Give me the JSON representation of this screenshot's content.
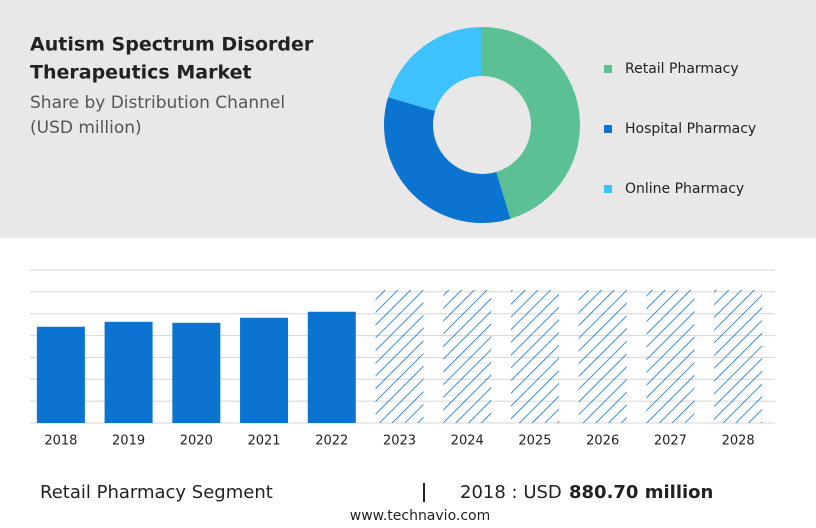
{
  "chart_data": [
    {
      "type": "pie",
      "title": [
        "Autism Spectrum Disorder",
        "Therapeutics Market"
      ],
      "subtitle": [
        "Share by Distribution Channel",
        "(USD million)"
      ],
      "categories": [
        "Retail Pharmacy",
        "Hospital Pharmacy",
        "Online Pharmacy"
      ],
      "values": [
        45.3,
        34.3,
        20.4
      ],
      "colors": [
        "#5bc194",
        "#0a74d0",
        "#3ec1ff"
      ]
    },
    {
      "type": "bar",
      "categories": [
        "2018",
        "2019",
        "2020",
        "2021",
        "2022",
        "2023",
        "2024",
        "2025",
        "2026",
        "2027",
        "2028"
      ],
      "values": [
        880.7,
        926,
        917,
        963,
        1018,
        null,
        null,
        null,
        null,
        null,
        null
      ],
      "color": "#0a74d0",
      "ylim": [
        0,
        1400
      ],
      "yticks": [
        0,
        200,
        400,
        600,
        800,
        1000,
        1200,
        1400
      ],
      "grid": true
    }
  ],
  "footer": {
    "segment": "Retail Pharmacy Segment",
    "year": "2018 : USD",
    "value": "880.70 million"
  },
  "website": "www.technavio.com"
}
